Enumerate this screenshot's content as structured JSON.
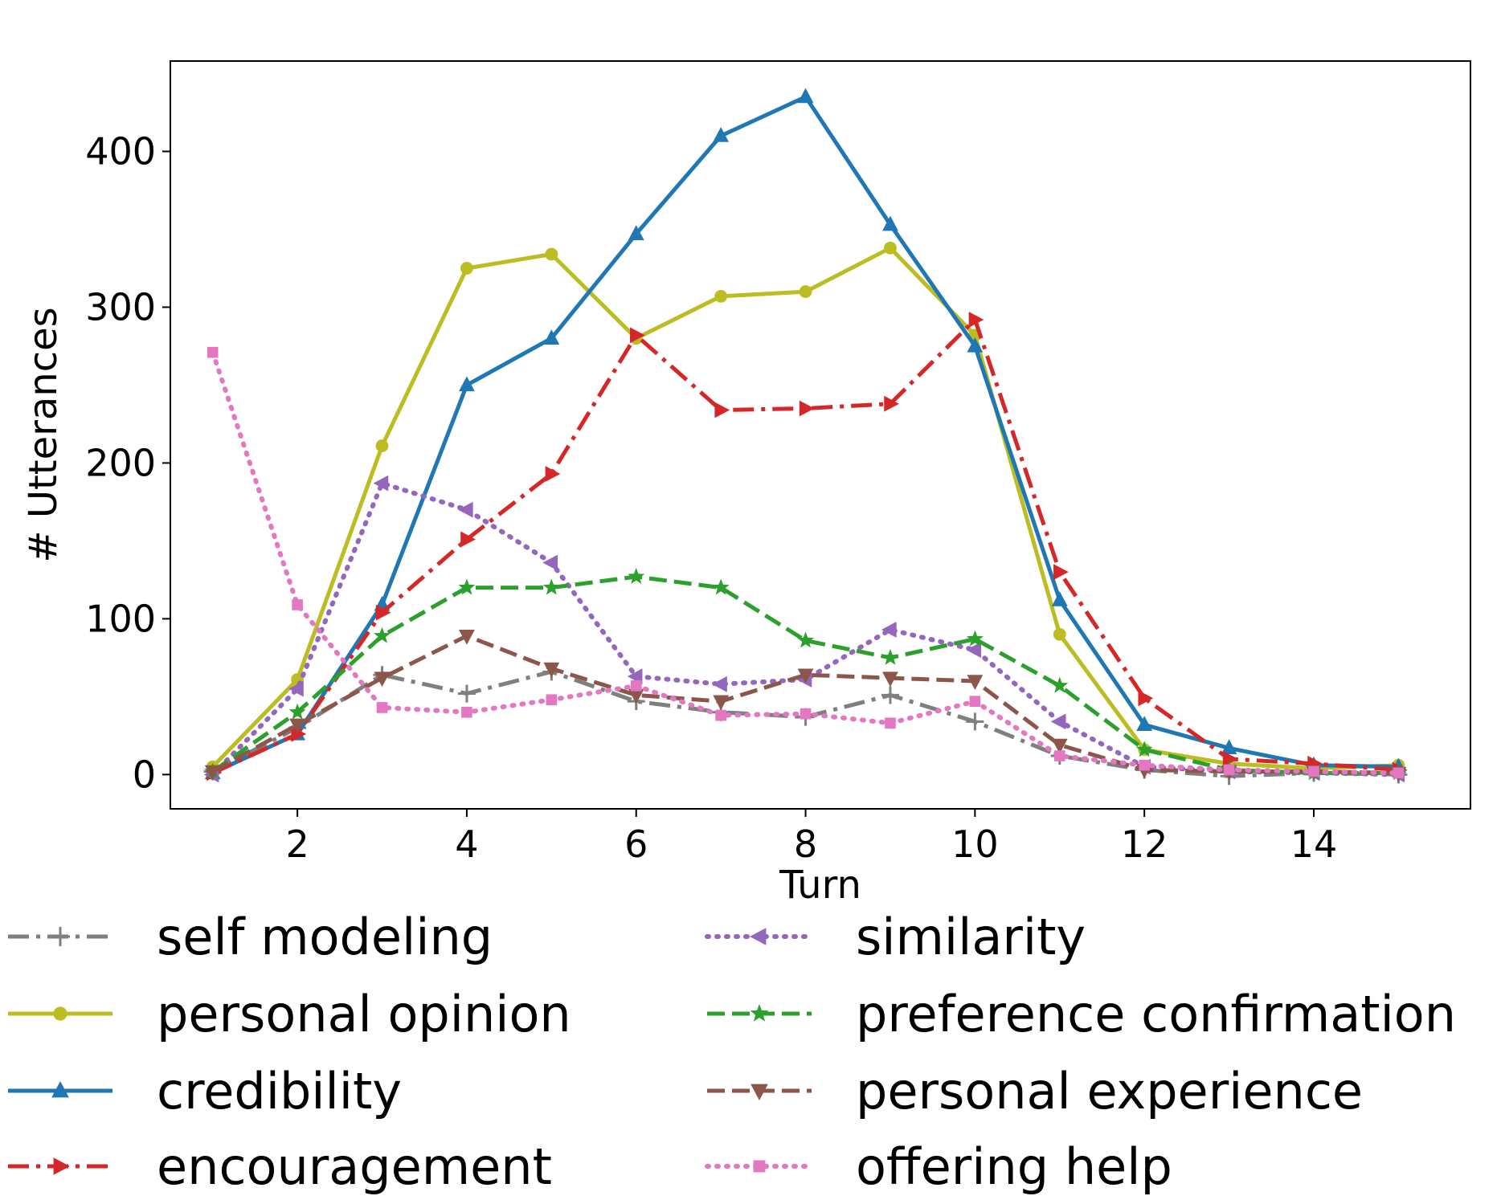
{
  "chart_data": {
    "type": "line",
    "title": "",
    "xlabel": "Turn",
    "ylabel": "# Utterances",
    "xlim": [
      0.5,
      15.85
    ],
    "ylim": [
      -22,
      458
    ],
    "xticks": [
      2,
      4,
      6,
      8,
      10,
      12,
      14
    ],
    "yticks": [
      0,
      100,
      200,
      300,
      400
    ],
    "grid": false,
    "legend_position": "bottom",
    "x": [
      1,
      2,
      3,
      4,
      5,
      6,
      7,
      8,
      9,
      10,
      11,
      12,
      13,
      14,
      15
    ],
    "series": [
      {
        "name": "self modeling",
        "color": "#7f7f7f",
        "dash": "dashdot",
        "marker": "plus",
        "values": [
          2,
          30,
          64,
          52,
          66,
          47,
          40,
          37,
          51,
          34,
          12,
          3,
          -1,
          1,
          0
        ]
      },
      {
        "name": "personal opinion",
        "color": "#bcbd22",
        "dash": "solid",
        "marker": "circle",
        "values": [
          5,
          61,
          211,
          325,
          334,
          280,
          307,
          310,
          338,
          282,
          90,
          16,
          7,
          4,
          6
        ]
      },
      {
        "name": "credibility",
        "color": "#1f77b4",
        "dash": "solid",
        "marker": "triangle-up",
        "values": [
          1,
          26,
          109,
          250,
          280,
          347,
          410,
          435,
          353,
          275,
          112,
          32,
          17,
          6,
          5
        ]
      },
      {
        "name": "encouragement",
        "color": "#d62728",
        "dash": "dashdot",
        "marker": "triangle-right",
        "values": [
          1,
          26,
          104,
          151,
          193,
          282,
          234,
          235,
          238,
          292,
          130,
          49,
          10,
          7,
          3
        ]
      },
      {
        "name": "similarity",
        "color": "#9467bd",
        "dash": "dotted",
        "marker": "triangle-left",
        "values": [
          0,
          55,
          187,
          170,
          136,
          63,
          58,
          61,
          93,
          80,
          34,
          5,
          2,
          1,
          0
        ]
      },
      {
        "name": "preference confirmation",
        "color": "#2ca02c",
        "dash": "dashed",
        "marker": "star",
        "values": [
          2,
          40,
          89,
          120,
          120,
          127,
          120,
          86,
          75,
          87,
          57,
          16,
          3,
          1,
          1
        ]
      },
      {
        "name": "personal experience",
        "color": "#8c564b",
        "dash": "dashed",
        "marker": "triangle-down",
        "values": [
          2,
          32,
          62,
          89,
          68,
          51,
          47,
          64,
          62,
          60,
          19,
          3,
          2,
          2,
          1
        ]
      },
      {
        "name": "offering help",
        "color": "#e377c2",
        "dash": "dotted",
        "marker": "square",
        "values": [
          271,
          109,
          43,
          40,
          48,
          57,
          38,
          39,
          33,
          47,
          12,
          6,
          3,
          2,
          1
        ]
      }
    ]
  }
}
